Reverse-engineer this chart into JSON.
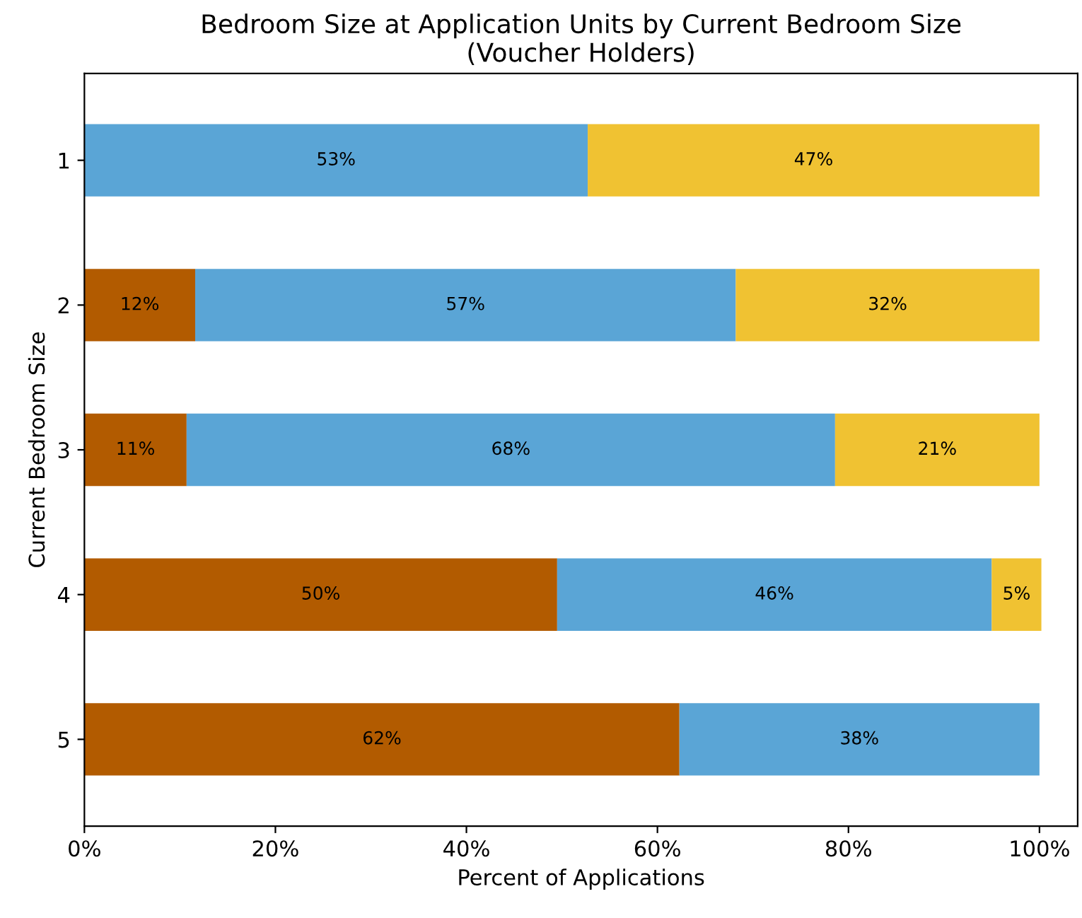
{
  "chart_data": {
    "type": "bar",
    "orientation": "horizontal",
    "stacked": true,
    "title": "Bedroom Size at Application Units by Current Bedroom Size\n(Voucher Holders)",
    "xlabel": "Percent of Applications",
    "ylabel": "Current Bedroom Size",
    "categories": [
      "1",
      "2",
      "3",
      "4",
      "5"
    ],
    "series": [
      {
        "color": "#b25b00",
        "values": [
          null,
          11.6,
          10.7,
          49.5,
          62.3
        ],
        "value_labels": [
          null,
          "12%",
          "11%",
          "50%",
          "62%"
        ]
      },
      {
        "color": "#5aa5d6",
        "values": [
          52.7,
          56.6,
          67.9,
          45.5,
          37.7
        ],
        "value_labels": [
          "53%",
          "57%",
          "68%",
          "46%",
          "38%"
        ]
      },
      {
        "color": "#f0c232",
        "values": [
          47.3,
          31.8,
          21.4,
          5.2,
          null
        ],
        "value_labels": [
          "47%",
          "32%",
          "21%",
          "5%",
          null
        ]
      }
    ],
    "xlim": [
      0,
      104
    ],
    "xticks": [
      {
        "value": 0,
        "label": "0%"
      },
      {
        "value": 20,
        "label": "20%"
      },
      {
        "value": 40,
        "label": "40%"
      },
      {
        "value": 60,
        "label": "60%"
      },
      {
        "value": 80,
        "label": "80%"
      },
      {
        "value": 100,
        "label": "100%"
      }
    ],
    "grid": false
  }
}
